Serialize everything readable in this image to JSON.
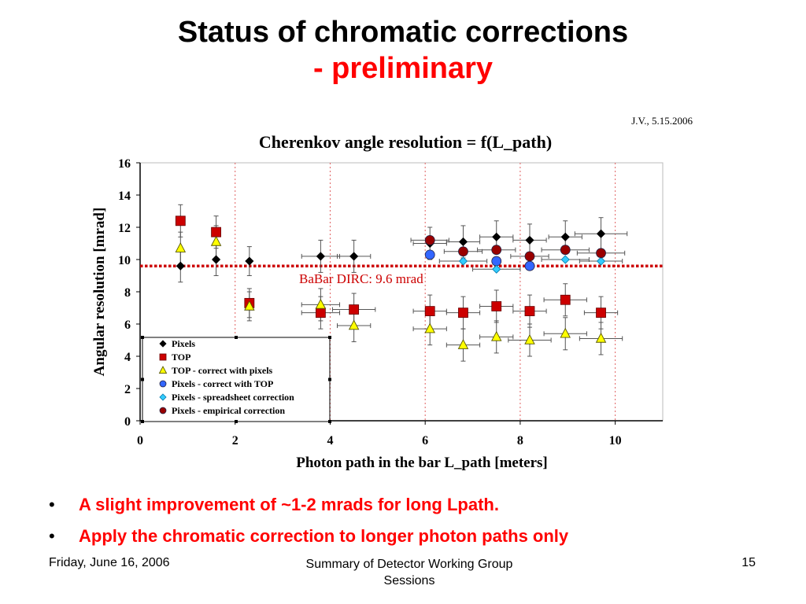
{
  "slide": {
    "title_main": "Status of chromatic corrections ",
    "title_suffix": "- preliminary",
    "credit": "J.V., 5.15.2006",
    "bullets": [
      "A slight improvement of ~1-2 mrads for long Lpath.",
      "Apply the chromatic correction to longer photon paths only"
    ],
    "bullet_symbol": "•",
    "footer": {
      "date": "Friday, June 16, 2006",
      "center": "Summary of Detector Working Group  Sessions",
      "page": "15"
    }
  },
  "chart_data": {
    "type": "scatter",
    "title": "Cherenkov angle resolution = f(L_path)",
    "xlabel": "Photon path in the bar L_path [meters]",
    "ylabel": "Angular resolution [mrad]",
    "xlim": [
      0,
      11
    ],
    "ylim": [
      0,
      16
    ],
    "xticks": [
      0,
      2,
      4,
      6,
      8,
      10
    ],
    "yticks": [
      0,
      2,
      4,
      6,
      8,
      10,
      12,
      14,
      16
    ],
    "grid": false,
    "vertical_reference_lines_x": [
      2,
      4,
      6,
      8,
      10
    ],
    "reference_line": {
      "y": 9.6,
      "label": "BaBar DIRC: 9.6 mrad",
      "color": "#cc0000"
    },
    "legend_position": "bottom-left",
    "series": [
      {
        "name": "Pixels",
        "marker": "diamond",
        "color": "#000000",
        "x": [
          0.85,
          1.6,
          2.3,
          3.8,
          4.5,
          6.1,
          6.8,
          7.5,
          8.2,
          8.95,
          9.7
        ],
        "y": [
          9.6,
          10.0,
          9.9,
          10.2,
          10.2,
          11.0,
          11.1,
          11.4,
          11.2,
          11.4,
          11.6
        ],
        "xerr": [
          0,
          0,
          0,
          0.4,
          0.35,
          0.35,
          0.35,
          0.35,
          0.35,
          0.35,
          0.55
        ],
        "yerr": [
          1.0,
          1.0,
          0.9,
          1.0,
          1.0,
          1.0,
          1.0,
          1.0,
          1.0,
          1.0,
          1.0
        ]
      },
      {
        "name": "TOP",
        "marker": "square",
        "color": "#cc0000",
        "x": [
          0.85,
          1.6,
          2.3,
          3.8,
          4.5,
          6.1,
          6.8,
          7.5,
          8.2,
          8.95,
          9.7
        ],
        "y": [
          12.4,
          11.7,
          7.3,
          6.7,
          6.9,
          6.8,
          6.7,
          7.1,
          6.8,
          7.5,
          6.7
        ],
        "xerr": [
          0,
          0,
          0,
          0.4,
          0.45,
          0.35,
          0.35,
          0.35,
          0.35,
          0.45,
          0.35
        ],
        "yerr": [
          1.0,
          1.0,
          0.9,
          1.0,
          1.0,
          1.0,
          1.0,
          1.0,
          1.0,
          1.0,
          1.0
        ]
      },
      {
        "name": "TOP - correct with pixels",
        "marker": "triangle",
        "color": "#ffff00",
        "x": [
          0.85,
          1.6,
          2.3,
          3.8,
          4.5,
          6.1,
          6.8,
          7.5,
          8.2,
          8.95,
          9.7
        ],
        "y": [
          10.7,
          11.1,
          7.1,
          7.2,
          5.9,
          5.7,
          4.7,
          5.2,
          5.0,
          5.4,
          5.1
        ],
        "xerr": [
          0,
          0,
          0,
          0.4,
          0.35,
          0.35,
          0.35,
          0.35,
          0.45,
          0.45,
          0.45
        ],
        "yerr": [
          1.0,
          1.0,
          0.9,
          1.0,
          1.0,
          1.0,
          1.0,
          1.0,
          1.0,
          1.0,
          1.0
        ]
      },
      {
        "name": "Pixels - correct with TOP",
        "marker": "circle",
        "color": "#3366ff",
        "x": [
          6.1,
          7.5,
          8.2
        ],
        "y": [
          10.3,
          9.9,
          9.6
        ],
        "xerr": [
          0,
          0,
          0
        ],
        "yerr": [
          0,
          0,
          0
        ]
      },
      {
        "name": "Pixels - spreadsheet correction",
        "marker": "diamond",
        "color": "#33ccff",
        "x": [
          6.8,
          7.5,
          8.95,
          9.7
        ],
        "y": [
          9.9,
          9.4,
          10.0,
          9.9
        ],
        "xerr": [
          0.5,
          0.5,
          0.5,
          0.45
        ],
        "yerr": [
          0,
          0,
          0,
          0
        ]
      },
      {
        "name": "Pixels - empirical correction",
        "marker": "circle",
        "color": "#990000",
        "x": [
          6.1,
          6.8,
          7.5,
          8.2,
          8.95,
          9.7
        ],
        "y": [
          11.2,
          10.5,
          10.6,
          10.2,
          10.6,
          10.4
        ],
        "xerr": [
          0.4,
          0.4,
          0.4,
          0.4,
          0.5,
          0.5
        ],
        "yerr": [
          0,
          0,
          0,
          0,
          0,
          0
        ]
      }
    ]
  }
}
